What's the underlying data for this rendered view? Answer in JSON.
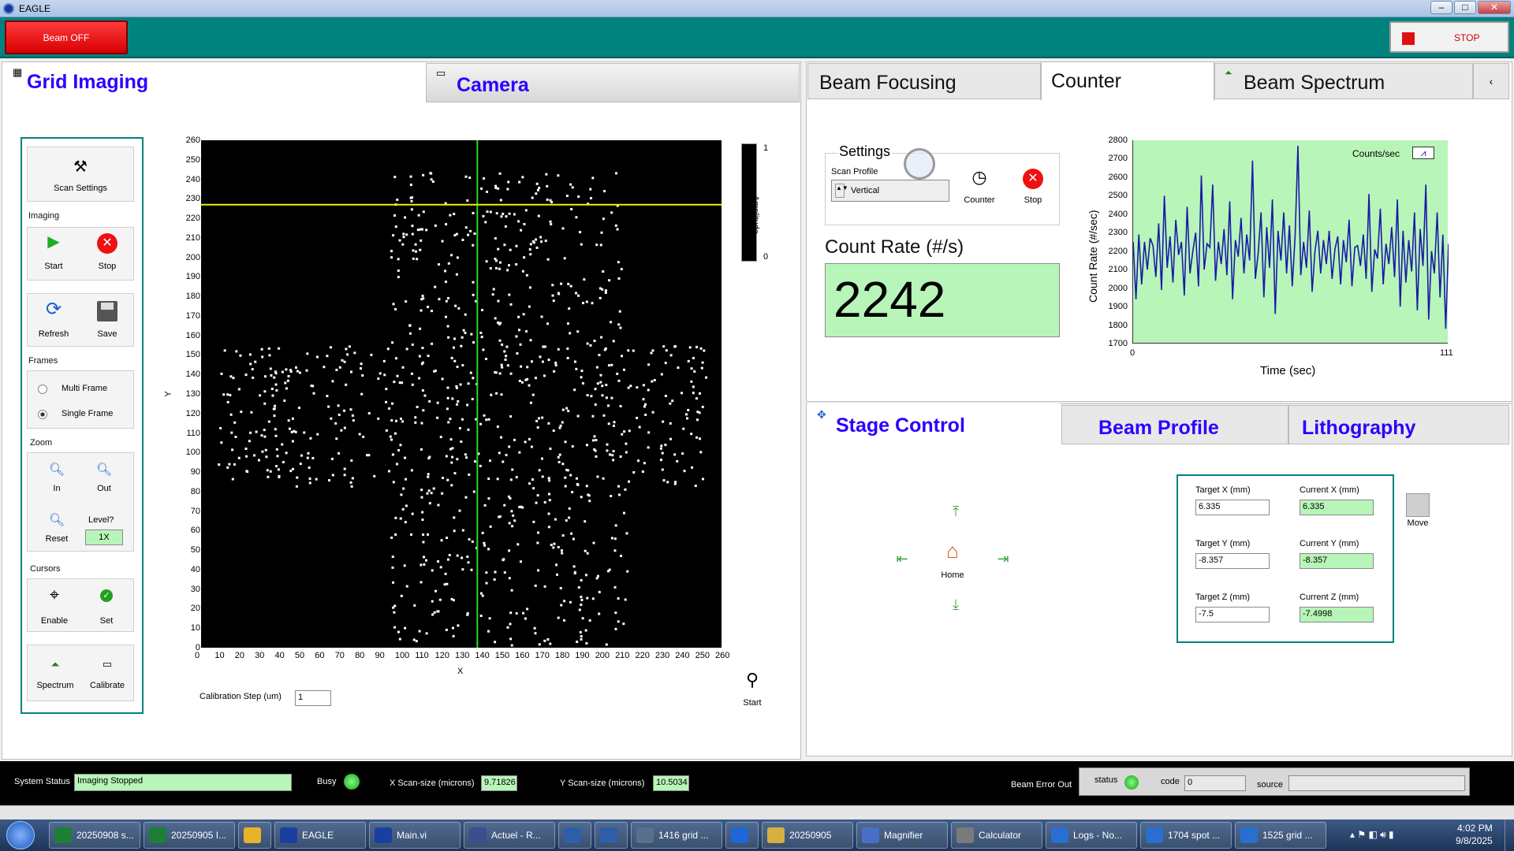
{
  "window": {
    "title": "EAGLE",
    "minimize": "–",
    "maximize": "□",
    "close": "✕"
  },
  "top": {
    "beam_label": "Beam OFF",
    "stop_label": "STOP"
  },
  "left_tabs": {
    "grid": "Grid Imaging",
    "camera": "Camera"
  },
  "toolbox": {
    "scan_settings": "Scan Settings",
    "imaging": "Imaging",
    "start": "Start",
    "stop": "Stop",
    "refresh": "Refresh",
    "save": "Save",
    "frames": "Frames",
    "multi": "Multi Frame",
    "single": "Single Frame",
    "zoom": "Zoom",
    "in": "In",
    "out": "Out",
    "reset": "Reset",
    "level_label": "Level?",
    "level_value": "1X",
    "cursors": "Cursors",
    "enable": "Enable",
    "set": "Set",
    "spectrum": "Spectrum",
    "calibrate": "Calibrate"
  },
  "image_plot": {
    "x_label": "X",
    "y_label": "Y",
    "ticks": [
      "0",
      "10",
      "20",
      "30",
      "40",
      "50",
      "60",
      "70",
      "80",
      "90",
      "100",
      "110",
      "120",
      "130",
      "140",
      "150",
      "160",
      "170",
      "180",
      "190",
      "200",
      "210",
      "220",
      "230",
      "240",
      "250",
      "260"
    ],
    "cursor_x": 138,
    "cursor_y": 227,
    "colorbar_label": "Amplitude",
    "colorbar_max": "1",
    "colorbar_min": "0"
  },
  "calibration": {
    "label": "Calibration Step (um)",
    "value": "1",
    "start": "Start"
  },
  "right_tabs": {
    "focusing": "Beam Focusing",
    "counter": "Counter",
    "spectrum": "Beam Spectrum",
    "arrow": "‹"
  },
  "counter": {
    "settings": "Settings",
    "scan_profile": "Scan Profile",
    "profile_value": "Vertical",
    "counter_btn": "Counter",
    "stop_btn": "Stop",
    "count_rate_label": "Count Rate (#/s)",
    "count_rate_value": "2242"
  },
  "chart_data": {
    "type": "line",
    "xlabel": "Time (sec)",
    "ylabel": "Count Rate (#/sec)",
    "xlim": [
      0,
      111
    ],
    "ylim": [
      1700,
      2800
    ],
    "x_ticks": [
      "0",
      "111"
    ],
    "y_ticks": [
      "1700",
      "1800",
      "1900",
      "2000",
      "2100",
      "2200",
      "2300",
      "2400",
      "2500",
      "2600",
      "2700",
      "2800"
    ],
    "legend": "Counts/sec",
    "grid": false,
    "series": [
      {
        "name": "Counts/sec",
        "values": [
          2250,
          1940,
          2290,
          2020,
          2250,
          2100,
          2270,
          2230,
          2060,
          2350,
          1990,
          2500,
          2110,
          2280,
          2030,
          2370,
          2180,
          2250,
          1960,
          2440,
          2080,
          2200,
          2300,
          2010,
          2610,
          2100,
          2240,
          2220,
          2560,
          2040,
          2250,
          2130,
          2320,
          2070,
          2470,
          1940,
          2260,
          2170,
          2380,
          2080,
          2290,
          2150,
          2690,
          2050,
          2190,
          2410,
          1950,
          2330,
          2110,
          2480,
          1860,
          2310,
          2150,
          2410,
          2080,
          2340,
          2010,
          2280,
          2770,
          2070,
          2250,
          2110,
          2420,
          1980,
          2200,
          2310,
          2080,
          2260,
          2130,
          2310,
          2050,
          2210,
          2280,
          2020,
          2260,
          2140,
          2370,
          2010,
          2220,
          2230,
          2120,
          2290,
          2050,
          2510,
          1980,
          2210,
          2160,
          2430,
          2020,
          2240,
          2130,
          2330,
          2060,
          2480,
          1900,
          2310,
          2030,
          2260,
          2090,
          2410,
          1880,
          2320,
          2120,
          2560,
          1830,
          2200,
          2080,
          2410,
          1950,
          2290,
          1780,
          2240
        ]
      }
    ]
  },
  "stage_tabs": {
    "stage": "Stage Control",
    "profile": "Beam Profile",
    "litho": "Lithography"
  },
  "stage": {
    "home": "Home",
    "target_x_label": "Target X (mm)",
    "current_x_label": "Current X (mm)",
    "target_x": "6.335",
    "current_x": "6.335",
    "target_y_label": "Target Y (mm)",
    "current_y_label": "Current Y (mm)",
    "target_y": "-8.357",
    "current_y": "-8.357",
    "target_z_label": "Target Z (mm)",
    "current_z_label": "Current Z (mm)",
    "target_z": "-7.5",
    "current_z": "-7.4998",
    "move": "Move"
  },
  "status": {
    "system_label": "System Status",
    "system_value": "Imaging Stopped",
    "busy": "Busy",
    "xscan_label": "X Scan-size (microns)",
    "xscan_value": "9.71826",
    "yscan_label": "Y Scan-size (microns)",
    "yscan_value": "10.5034",
    "beam_error": "Beam Error Out",
    "status_label": "status",
    "code_label": "code",
    "code_value": "0",
    "source_label": "source"
  },
  "taskbar": {
    "items": [
      "20250908 s...",
      "20250905 I...",
      "",
      "EAGLE",
      "Main.vi",
      "Actuel - R...",
      "",
      "",
      "1416 grid ...",
      "",
      "20250905",
      "Magnifier",
      "Calculator",
      "Logs - No...",
      "1704 spot ...",
      "1525 grid ..."
    ],
    "time": "4:02 PM",
    "date": "9/8/2025"
  }
}
